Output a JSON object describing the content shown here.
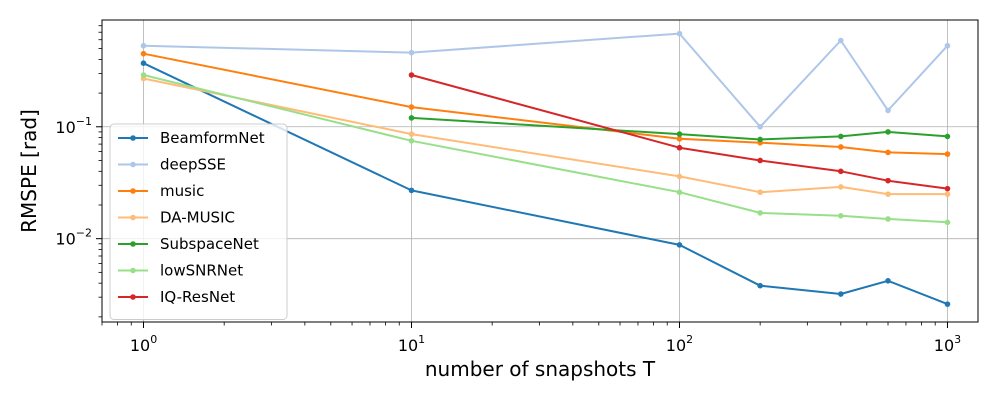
{
  "chart_data": {
    "type": "line",
    "title": "",
    "xlabel": "number of snapshots T",
    "ylabel": "RMSPE [rad]",
    "xscale": "log",
    "yscale": "log",
    "xlim": [
      0.7,
      1300
    ],
    "ylim": [
      0.0018,
      0.9
    ],
    "grid": true,
    "legend_position": "lower-left",
    "x_ticks": [
      {
        "value": 1,
        "base": "10",
        "exp": "0"
      },
      {
        "value": 10,
        "base": "10",
        "exp": "1"
      },
      {
        "value": 100,
        "base": "10",
        "exp": "2"
      },
      {
        "value": 1000,
        "base": "10",
        "exp": "3"
      }
    ],
    "y_ticks": [
      {
        "value": 0.01,
        "base": "10",
        "exp": "−2"
      },
      {
        "value": 0.1,
        "base": "10",
        "exp": "−1"
      }
    ],
    "series": [
      {
        "name": "BeamformNet",
        "color": "#1f77b4",
        "points": [
          [
            1,
            0.37
          ],
          [
            10,
            0.027
          ],
          [
            100,
            0.0088
          ],
          [
            200,
            0.0038
          ],
          [
            400,
            0.0032
          ],
          [
            600,
            0.0042
          ],
          [
            1000,
            0.0026
          ]
        ]
      },
      {
        "name": "deepSSE",
        "color": "#aec7e8",
        "points": [
          [
            1,
            0.53
          ],
          [
            10,
            0.46
          ],
          [
            100,
            0.68
          ],
          [
            200,
            0.1
          ],
          [
            400,
            0.59
          ],
          [
            600,
            0.14
          ],
          [
            1000,
            0.53
          ]
        ]
      },
      {
        "name": "music",
        "color": "#ff7f0e",
        "points": [
          [
            1,
            0.45
          ],
          [
            10,
            0.15
          ],
          [
            100,
            0.078
          ],
          [
            200,
            0.072
          ],
          [
            400,
            0.066
          ],
          [
            600,
            0.059
          ],
          [
            1000,
            0.057
          ]
        ]
      },
      {
        "name": "DA-MUSIC",
        "color": "#ffbb78",
        "points": [
          [
            1,
            0.27
          ],
          [
            10,
            0.086
          ],
          [
            100,
            0.036
          ],
          [
            200,
            0.026
          ],
          [
            400,
            0.029
          ],
          [
            600,
            0.025
          ],
          [
            1000,
            0.025
          ]
        ]
      },
      {
        "name": "SubspaceNet",
        "color": "#2ca02c",
        "points": [
          [
            10,
            0.12
          ],
          [
            100,
            0.086
          ],
          [
            200,
            0.077
          ],
          [
            400,
            0.082
          ],
          [
            600,
            0.09
          ],
          [
            1000,
            0.082
          ]
        ]
      },
      {
        "name": "lowSNRNet",
        "color": "#98df8a",
        "points": [
          [
            1,
            0.29
          ],
          [
            10,
            0.075
          ],
          [
            100,
            0.026
          ],
          [
            200,
            0.017
          ],
          [
            400,
            0.016
          ],
          [
            600,
            0.015
          ],
          [
            1000,
            0.014
          ]
        ]
      },
      {
        "name": "IQ-ResNet",
        "color": "#d62728",
        "points": [
          [
            10,
            0.29
          ],
          [
            100,
            0.065
          ],
          [
            200,
            0.05
          ],
          [
            400,
            0.04
          ],
          [
            600,
            0.033
          ],
          [
            1000,
            0.028
          ]
        ]
      }
    ]
  }
}
